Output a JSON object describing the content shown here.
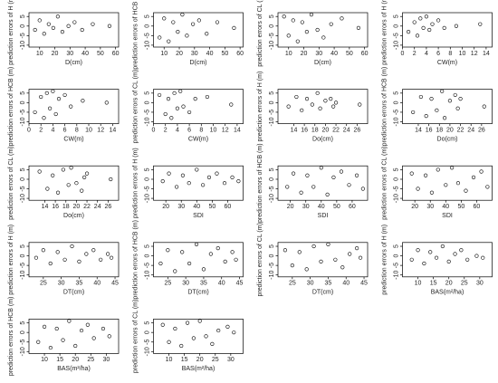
{
  "chart_data": [
    {
      "type": "scatter",
      "x_label": "D(cm)",
      "y_label": "prediction errors of H (m)",
      "xlim": [
        3,
        62
      ],
      "xticks": [
        10,
        20,
        30,
        40,
        50,
        60
      ],
      "ylim": [
        -11,
        7
      ],
      "yticks": [
        -10,
        -5,
        0,
        5
      ],
      "x": [
        7,
        10,
        13,
        16,
        19,
        22,
        25,
        29,
        33,
        38,
        45,
        56
      ],
      "y": [
        -2,
        3,
        -4,
        1,
        -1,
        5,
        -3,
        0,
        2,
        -2,
        1,
        0
      ]
    },
    {
      "type": "scatter",
      "x_label": "D(cm)",
      "y_label": "prediction errors of HCB (m)",
      "xlim": [
        3,
        62
      ],
      "xticks": [
        10,
        20,
        30,
        40,
        50,
        60
      ],
      "ylim": [
        -11,
        7
      ],
      "yticks": [
        -10,
        -5,
        0,
        5
      ],
      "x": [
        7,
        10,
        13,
        16,
        19,
        22,
        25,
        29,
        33,
        38,
        45,
        56
      ],
      "y": [
        -6,
        4,
        -8,
        2,
        -3,
        6,
        -5,
        1,
        3,
        -4,
        2,
        -1
      ]
    },
    {
      "type": "scatter",
      "x_label": "D(cm)",
      "y_label": "prediction errors of CL (m)",
      "xlim": [
        3,
        62
      ],
      "xticks": [
        10,
        20,
        30,
        40,
        50,
        60
      ],
      "ylim": [
        -11,
        7
      ],
      "yticks": [
        -10,
        -5,
        0,
        5
      ],
      "x": [
        7,
        10,
        13,
        16,
        19,
        22,
        25,
        29,
        33,
        38,
        45,
        56
      ],
      "y": [
        5,
        -5,
        3,
        -8,
        2,
        -3,
        6,
        -2,
        -6,
        1,
        4,
        -1
      ]
    },
    {
      "type": "scatter",
      "x_label": "CW(m)",
      "y_label": "prediction errors of H (m)",
      "xlim": [
        0,
        15
      ],
      "xticks": [
        0,
        2,
        4,
        6,
        8,
        10,
        12,
        14
      ],
      "ylim": [
        -11,
        7
      ],
      "yticks": [
        -10,
        -5,
        0,
        5
      ],
      "x": [
        1,
        2,
        2.5,
        3,
        3.5,
        4,
        4.5,
        5,
        6,
        7,
        9,
        13
      ],
      "y": [
        -3,
        2,
        -5,
        4,
        -1,
        5,
        -2,
        1,
        3,
        -1,
        0,
        1
      ]
    },
    {
      "type": "scatter",
      "x_label": "CW(m)",
      "y_label": "prediction errors of HCB (m)",
      "xlim": [
        0,
        15
      ],
      "xticks": [
        0,
        2,
        4,
        6,
        8,
        10,
        12,
        14
      ],
      "ylim": [
        -11,
        7
      ],
      "yticks": [
        -10,
        -5,
        0,
        5
      ],
      "x": [
        1,
        2,
        2.5,
        3,
        3.5,
        4,
        4.5,
        5,
        6,
        7,
        9,
        13
      ],
      "y": [
        -5,
        3,
        -8,
        5,
        -3,
        6,
        -6,
        2,
        4,
        -2,
        1,
        0
      ]
    },
    {
      "type": "scatter",
      "x_label": "CW(m)",
      "y_label": "prediction errors of CL (m)",
      "xlim": [
        0,
        15
      ],
      "xticks": [
        0,
        2,
        4,
        6,
        8,
        10,
        12,
        14
      ],
      "ylim": [
        -11,
        7
      ],
      "yticks": [
        -10,
        -5,
        0,
        5
      ],
      "x": [
        1,
        2,
        2.5,
        3,
        3.5,
        4,
        4.5,
        5,
        6,
        7,
        9,
        13
      ],
      "y": [
        4,
        -6,
        2,
        -8,
        5,
        -3,
        6,
        -2,
        -5,
        2,
        3,
        -1
      ]
    },
    {
      "type": "scatter",
      "x_label": "Do(cm)",
      "y_label": "prediction errors of H (m)",
      "xlim": [
        11,
        28
      ],
      "xticks": [
        14,
        16,
        18,
        20,
        22,
        24,
        26
      ],
      "ylim": [
        -11,
        7
      ],
      "yticks": [
        -10,
        -5,
        0,
        5
      ],
      "x": [
        13,
        14.5,
        15.5,
        16.5,
        17.5,
        18.5,
        19,
        20,
        21,
        21.5,
        22,
        26.5
      ],
      "y": [
        -2,
        3,
        -4,
        2,
        -1,
        5,
        -3,
        1,
        2,
        -2,
        0,
        -1
      ]
    },
    {
      "type": "scatter",
      "x_label": "Do(cm)",
      "y_label": "prediction errors of HCB (m)",
      "xlim": [
        11,
        28
      ],
      "xticks": [
        14,
        16,
        18,
        20,
        22,
        24,
        26
      ],
      "ylim": [
        -11,
        7
      ],
      "yticks": [
        -10,
        -5,
        0,
        5
      ],
      "x": [
        13,
        14.5,
        15.5,
        16.5,
        17.5,
        18.5,
        19,
        20,
        21,
        21.5,
        22,
        26.5
      ],
      "y": [
        -5,
        3,
        -7,
        2,
        -4,
        6,
        -8,
        1,
        4,
        -3,
        2,
        -2
      ]
    },
    {
      "type": "scatter",
      "x_label": "Do(cm)",
      "y_label": "prediction errors of CL (m)",
      "xlim": [
        11,
        28
      ],
      "xticks": [
        14,
        16,
        18,
        20,
        22,
        24,
        26
      ],
      "ylim": [
        -11,
        7
      ],
      "yticks": [
        -10,
        -5,
        0,
        5
      ],
      "x": [
        13,
        14.5,
        15.5,
        16.5,
        17.5,
        18.5,
        19,
        20,
        21,
        21.5,
        22,
        26.5
      ],
      "y": [
        4,
        -5,
        2,
        -7,
        5,
        -3,
        6,
        -2,
        -6,
        1,
        3,
        0
      ]
    },
    {
      "type": "scatter",
      "x_label": "SDI",
      "y_label": "prediction errors of H (m)",
      "xlim": [
        12,
        70
      ],
      "xticks": [
        20,
        30,
        40,
        50,
        60
      ],
      "ylim": [
        -11,
        7
      ],
      "yticks": [
        -10,
        -5,
        0,
        5
      ],
      "x": [
        18,
        22,
        27,
        31,
        35,
        40,
        44,
        48,
        53,
        58,
        63,
        67
      ],
      "y": [
        -1,
        3,
        -4,
        2,
        -2,
        5,
        -3,
        1,
        3,
        -2,
        1,
        -1
      ]
    },
    {
      "type": "scatter",
      "x_label": "SDI",
      "y_label": "prediction errors of HCB (m)",
      "xlim": [
        12,
        70
      ],
      "xticks": [
        20,
        30,
        40,
        50,
        60
      ],
      "ylim": [
        -11,
        7
      ],
      "yticks": [
        -10,
        -5,
        0,
        5
      ],
      "x": [
        18,
        22,
        27,
        31,
        35,
        40,
        44,
        48,
        53,
        58,
        63,
        67
      ],
      "y": [
        -4,
        3,
        -7,
        2,
        -4,
        6,
        -8,
        1,
        4,
        -3,
        2,
        -5
      ]
    },
    {
      "type": "scatter",
      "x_label": "SDI",
      "y_label": "prediction errors of CL (m)",
      "xlim": [
        12,
        70
      ],
      "xticks": [
        20,
        30,
        40,
        50,
        60
      ],
      "ylim": [
        -11,
        7
      ],
      "yticks": [
        -10,
        -5,
        0,
        5
      ],
      "x": [
        18,
        22,
        27,
        31,
        35,
        40,
        44,
        48,
        53,
        58,
        63,
        67
      ],
      "y": [
        3,
        -5,
        2,
        -7,
        5,
        -3,
        6,
        -2,
        -6,
        1,
        4,
        -4
      ]
    },
    {
      "type": "scatter",
      "x_label": "DT(cm)",
      "y_label": "prediction errors of H (m)",
      "xlim": [
        21,
        46
      ],
      "xticks": [
        25,
        30,
        35,
        40,
        45
      ],
      "ylim": [
        -11,
        7
      ],
      "yticks": [
        -10,
        -5,
        0,
        5
      ],
      "x": [
        23,
        25,
        27,
        29,
        31,
        33,
        35,
        37,
        39,
        41,
        43,
        44
      ],
      "y": [
        -1,
        3,
        -4,
        2,
        -2,
        5,
        -3,
        1,
        3,
        -2,
        1,
        -1
      ]
    },
    {
      "type": "scatter",
      "x_label": "DT(cm)",
      "y_label": "prediction errors of HCB (m)",
      "xlim": [
        21,
        46
      ],
      "xticks": [
        25,
        30,
        35,
        40,
        45
      ],
      "ylim": [
        -11,
        7
      ],
      "yticks": [
        -10,
        -5,
        0,
        5
      ],
      "x": [
        23,
        25,
        27,
        29,
        31,
        33,
        35,
        37,
        39,
        41,
        43,
        44
      ],
      "y": [
        -4,
        3,
        -8,
        2,
        -4,
        6,
        -7,
        1,
        4,
        -3,
        2,
        -2
      ]
    },
    {
      "type": "scatter",
      "x_label": "DT(cm)",
      "y_label": "prediction errors of CL (m)",
      "xlim": [
        21,
        46
      ],
      "xticks": [
        25,
        30,
        35,
        40,
        45
      ],
      "ylim": [
        -11,
        7
      ],
      "yticks": [
        -10,
        -5,
        0,
        5
      ],
      "x": [
        23,
        25,
        27,
        29,
        31,
        33,
        35,
        37,
        39,
        41,
        43,
        44
      ],
      "y": [
        3,
        -5,
        2,
        -7,
        5,
        -3,
        6,
        -2,
        -6,
        1,
        4,
        -1
      ]
    },
    {
      "type": "scatter",
      "x_label": "BAS(m²/ha)",
      "y_label": "prediction errors of H (m)",
      "xlim": [
        5,
        34
      ],
      "xticks": [
        10,
        15,
        20,
        25,
        30
      ],
      "ylim": [
        -11,
        7
      ],
      "yticks": [
        -10,
        -5,
        0,
        5
      ],
      "x": [
        8,
        10,
        12,
        14,
        16,
        18,
        20,
        22,
        24,
        26,
        29,
        31
      ],
      "y": [
        -2,
        3,
        -4,
        2,
        -1,
        5,
        -3,
        1,
        3,
        -2,
        0,
        -1
      ]
    },
    {
      "type": "scatter",
      "x_label": "BAS(m²/ha)",
      "y_label": "prediction errors of HCB (m)",
      "xlim": [
        5,
        34
      ],
      "xticks": [
        10,
        15,
        20,
        25,
        30
      ],
      "ylim": [
        -11,
        7
      ],
      "yticks": [
        -10,
        -5,
        0,
        5
      ],
      "x": [
        8,
        10,
        12,
        14,
        16,
        18,
        20,
        22,
        24,
        26,
        29,
        31
      ],
      "y": [
        -5,
        3,
        -8,
        2,
        -4,
        6,
        -7,
        1,
        4,
        -3,
        2,
        -2
      ]
    },
    {
      "type": "scatter",
      "x_label": "BAS(m²/ha)",
      "y_label": "prediction errors of CL (m)",
      "xlim": [
        5,
        34
      ],
      "xticks": [
        10,
        15,
        20,
        25,
        30
      ],
      "ylim": [
        -11,
        7
      ],
      "yticks": [
        -10,
        -5,
        0,
        5
      ],
      "x": [
        8,
        10,
        12,
        14,
        16,
        18,
        20,
        22,
        24,
        26,
        29,
        31
      ],
      "y": [
        4,
        -5,
        2,
        -7,
        5,
        -3,
        6,
        -2,
        -6,
        1,
        3,
        0
      ]
    }
  ]
}
